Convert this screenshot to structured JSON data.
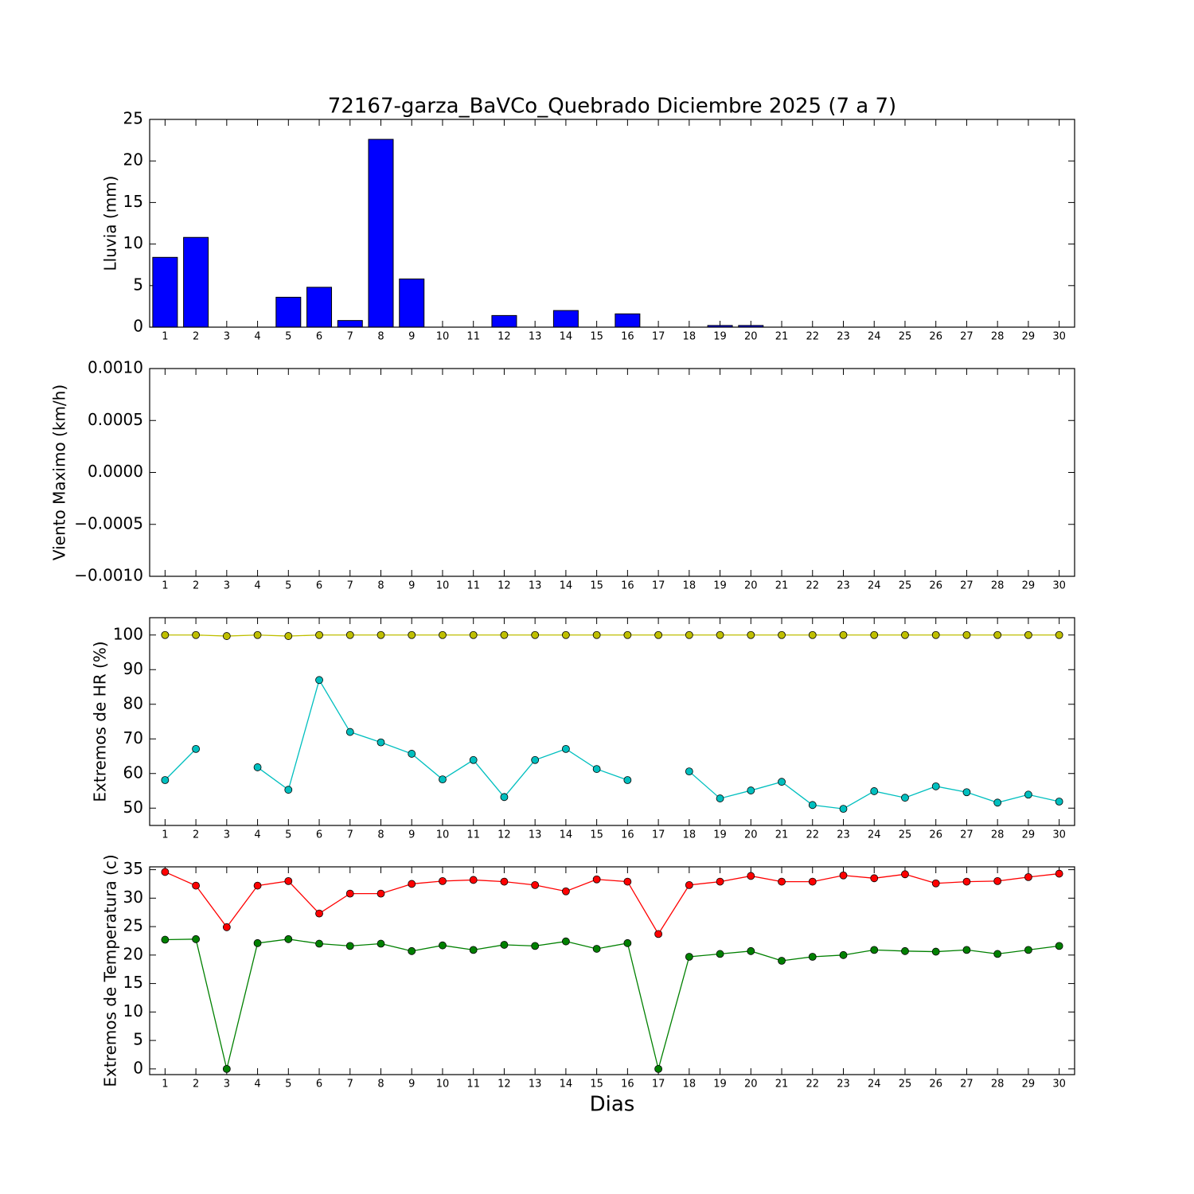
{
  "chart_data": [
    {
      "type": "bar",
      "title": "72167-garza_BaVCo_Quebrado Diciembre 2025  (7 a 7)",
      "y_label": "Lluvia (mm)",
      "x": [
        1,
        2,
        3,
        4,
        5,
        6,
        7,
        8,
        9,
        10,
        11,
        12,
        13,
        14,
        15,
        16,
        17,
        18,
        19,
        20,
        21,
        22,
        23,
        24,
        25,
        26,
        27,
        28,
        29,
        30
      ],
      "values": [
        8.4,
        10.8,
        0,
        0,
        3.6,
        4.8,
        0.8,
        22.6,
        5.8,
        0,
        0,
        1.4,
        0,
        2.0,
        0,
        1.6,
        0,
        0,
        0.2,
        0.2,
        0,
        0,
        0,
        0,
        0,
        0,
        0,
        0,
        0,
        0
      ],
      "color": "#0000ff",
      "xlim": [
        0.5,
        30.5
      ],
      "xticks": [
        1,
        2,
        3,
        4,
        5,
        6,
        7,
        8,
        9,
        10,
        11,
        12,
        13,
        14,
        15,
        16,
        17,
        18,
        19,
        20,
        21,
        22,
        23,
        24,
        25,
        26,
        27,
        28,
        29,
        30
      ],
      "ylim": [
        0,
        25
      ],
      "yticks": [
        0,
        5,
        10,
        15,
        20,
        25
      ]
    },
    {
      "type": "line",
      "y_label": "Viento Maximo (km/h)",
      "xlim": [
        0.5,
        30.5
      ],
      "xticks": [
        1,
        2,
        3,
        4,
        5,
        6,
        7,
        8,
        9,
        10,
        11,
        12,
        13,
        14,
        15,
        16,
        17,
        18,
        19,
        20,
        21,
        22,
        23,
        24,
        25,
        26,
        27,
        28,
        29,
        30
      ],
      "ylim": [
        -0.001,
        0.001
      ],
      "yticks": [
        {
          "value": -0.001,
          "label": "−0.0010"
        },
        {
          "value": -0.0005,
          "label": "−0.0005"
        },
        {
          "value": 0,
          "label": "0.0000"
        },
        {
          "value": 0.0005,
          "label": "0.0005"
        },
        {
          "value": 0.001,
          "label": "0.0010"
        }
      ]
    },
    {
      "type": "line",
      "y_label": "Extremos de HR (%)",
      "x": [
        1,
        2,
        3,
        4,
        5,
        6,
        7,
        8,
        9,
        10,
        11,
        12,
        13,
        14,
        15,
        16,
        17,
        18,
        19,
        20,
        21,
        22,
        23,
        24,
        25,
        26,
        27,
        28,
        29,
        30
      ],
      "series": [
        {
          "color": "#bfbf00",
          "values": [
            100,
            100,
            99.7,
            100,
            99.7,
            100,
            100,
            100,
            100,
            100,
            100,
            100,
            100,
            100,
            100,
            100,
            100,
            100,
            100,
            100,
            100,
            100,
            100,
            100,
            100,
            100,
            100,
            100,
            100,
            100
          ]
        },
        {
          "color": "#00bfbf",
          "values": [
            58.1,
            67.1,
            null,
            61.8,
            55.3,
            87.0,
            72.0,
            69.0,
            65.7,
            58.3,
            63.9,
            53.2,
            63.9,
            67.1,
            61.3,
            58.1,
            null,
            60.6,
            52.8,
            55.1,
            57.6,
            50.9,
            49.8,
            54.9,
            53.0,
            56.3,
            54.6,
            51.6,
            53.9,
            51.9
          ]
        }
      ],
      "xlim": [
        0.5,
        30.5
      ],
      "xticks": [
        1,
        2,
        3,
        4,
        5,
        6,
        7,
        8,
        9,
        10,
        11,
        12,
        13,
        14,
        15,
        16,
        17,
        18,
        19,
        20,
        21,
        22,
        23,
        24,
        25,
        26,
        27,
        28,
        29,
        30
      ],
      "ylim": [
        45,
        105
      ],
      "yticks": [
        50,
        60,
        70,
        80,
        90,
        100
      ]
    },
    {
      "type": "line",
      "y_label": "Extremos de Temperatura (c)",
      "x_label": "Dias",
      "x": [
        1,
        2,
        3,
        4,
        5,
        6,
        7,
        8,
        9,
        10,
        11,
        12,
        13,
        14,
        15,
        16,
        17,
        18,
        19,
        20,
        21,
        22,
        23,
        24,
        25,
        26,
        27,
        28,
        29,
        30
      ],
      "series": [
        {
          "color": "#ff0000",
          "values": [
            34.6,
            32.2,
            24.9,
            32.2,
            33.0,
            27.3,
            30.8,
            30.8,
            32.5,
            33.0,
            33.2,
            32.9,
            32.3,
            31.2,
            33.3,
            32.9,
            23.7,
            32.3,
            32.9,
            33.9,
            32.9,
            32.9,
            34.0,
            33.5,
            34.2,
            32.6,
            32.9,
            33.0,
            33.7,
            34.3
          ]
        },
        {
          "color": "#008000",
          "values": [
            22.7,
            22.8,
            0,
            22.1,
            22.8,
            22.0,
            21.6,
            22.0,
            20.7,
            21.7,
            20.9,
            21.8,
            21.6,
            22.4,
            21.1,
            22.1,
            0,
            19.7,
            20.2,
            20.7,
            19.0,
            19.7,
            20.0,
            20.9,
            20.7,
            20.6,
            20.9,
            20.2,
            20.9,
            21.6
          ]
        }
      ],
      "xlim": [
        0.5,
        30.5
      ],
      "xticks": [
        1,
        2,
        3,
        4,
        5,
        6,
        7,
        8,
        9,
        10,
        11,
        12,
        13,
        14,
        15,
        16,
        17,
        18,
        19,
        20,
        21,
        22,
        23,
        24,
        25,
        26,
        27,
        28,
        29,
        30
      ],
      "ylim": [
        -1,
        35.5
      ],
      "yticks": [
        0,
        5,
        10,
        15,
        20,
        25,
        30,
        35
      ]
    }
  ]
}
